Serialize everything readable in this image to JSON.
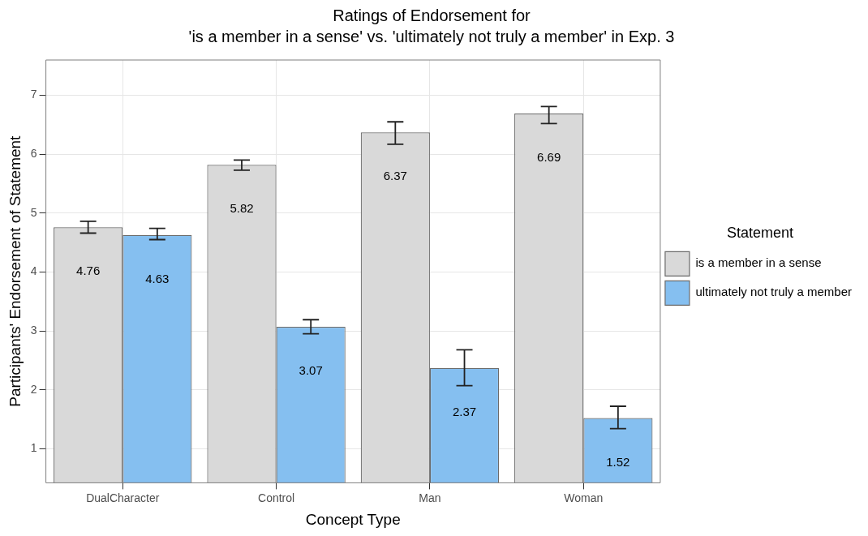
{
  "chart_data": {
    "type": "bar",
    "title": "Ratings of Endorsement for",
    "subtitle": "'is a member in a sense' vs. 'ultimately not truly a member' in Exp. 3",
    "xlabel": "Concept Type",
    "ylabel": "Participants' Endorsement of Statement",
    "legend_title": "Statement",
    "categories": [
      "DualCharacter",
      "Control",
      "Man",
      "Woman"
    ],
    "series": [
      {
        "name": "is a member in a sense",
        "color": "#d9d9d9",
        "values": [
          4.76,
          5.82,
          6.37,
          6.69
        ],
        "errors": [
          [
            4.66,
            4.86
          ],
          [
            5.73,
            5.9
          ],
          [
            6.17,
            6.55
          ],
          [
            6.52,
            6.81
          ]
        ]
      },
      {
        "name": "ultimately not truly a member",
        "color": "#85bff0",
        "values": [
          4.63,
          3.07,
          2.37,
          1.52
        ],
        "errors": [
          [
            4.55,
            4.74
          ],
          [
            2.95,
            3.19
          ],
          [
            2.07,
            2.68
          ],
          [
            1.34,
            1.72
          ]
        ]
      }
    ],
    "ylim": [
      0.42,
      7.6
    ],
    "yticks": [
      1,
      2,
      3,
      4,
      5,
      6,
      7
    ],
    "grid": true,
    "legend": "right",
    "data_labels": true
  }
}
